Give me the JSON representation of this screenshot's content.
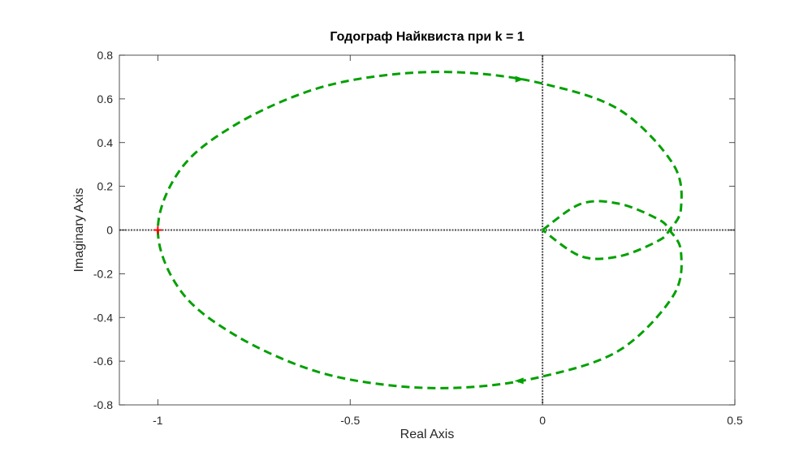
{
  "chart_data": {
    "type": "line",
    "title": "Годограф Найквиста при k = 1",
    "xlabel": "Real Axis",
    "ylabel": "Imaginary Axis",
    "xlim": [
      -1.1,
      0.5
    ],
    "ylim": [
      -0.8,
      0.8
    ],
    "xticks": [
      -1,
      -0.5,
      0,
      0.5
    ],
    "xtick_labels": [
      "-1",
      "-0.5",
      "0",
      "0.5"
    ],
    "yticks": [
      -0.8,
      -0.6,
      -0.4,
      -0.2,
      0,
      0.2,
      0.4,
      0.6,
      0.8
    ],
    "ytick_labels": [
      "-0.8",
      "-0.6",
      "-0.4",
      "-0.2",
      "0",
      "0.2",
      "0.4",
      "0.6",
      "0.8"
    ],
    "grid": false,
    "colors": {
      "curve": "#00a000",
      "critical_point": "#ff0000",
      "axis_lines": "#4d4d4d",
      "frame": "#262626"
    },
    "series": [
      {
        "style": "dashed",
        "x": [
          0.0,
          0.1,
          0.2,
          0.3,
          0.33,
          0.36,
          0.34,
          0.2,
          0.0,
          -0.2,
          -0.4,
          -0.6,
          -0.8,
          -0.94,
          -1.0,
          -0.94,
          -0.8,
          -0.6,
          -0.4,
          -0.2,
          0.0,
          0.2,
          0.34,
          0.36,
          0.33,
          0.3,
          0.2,
          0.1,
          0.0
        ],
        "y": [
          0.0,
          0.12,
          0.12,
          0.05,
          0.0,
          -0.1,
          -0.3,
          -0.55,
          -0.67,
          -0.72,
          -0.71,
          -0.64,
          -0.48,
          -0.28,
          0.0,
          0.28,
          0.48,
          0.64,
          0.71,
          0.72,
          0.67,
          0.55,
          0.3,
          0.1,
          0.0,
          -0.05,
          -0.12,
          -0.12,
          0.0
        ]
      }
    ],
    "arrows": [
      {
        "x": -0.06,
        "y": 0.69,
        "direction": "right"
      },
      {
        "x": -0.06,
        "y": -0.69,
        "direction": "left"
      }
    ],
    "critical_point": {
      "x": -1,
      "y": 0,
      "marker": "+"
    }
  }
}
